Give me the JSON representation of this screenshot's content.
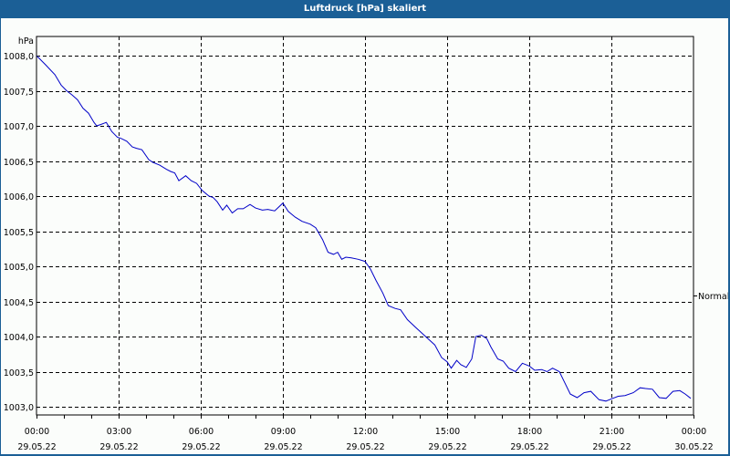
{
  "window": {
    "title": "Luftdruck [hPa] skaliert"
  },
  "chart_data": {
    "type": "line",
    "title": "Luftdruck [hPa] skaliert",
    "xlabel": "",
    "ylabel": "hPa",
    "ylim": [
      1002.85,
      1008.25
    ],
    "xlim_hours": [
      0,
      24
    ],
    "grid": true,
    "grid_style": "dashed",
    "line_color": "#0000c8",
    "reference_line": {
      "label": "Normal",
      "position": "right-axis"
    },
    "y_ticks": [
      "1008,0",
      "1007,5",
      "1007,0",
      "1006,5",
      "1006,0",
      "1005,5",
      "1005,0",
      "1004,5",
      "1004,0",
      "1003,5",
      "1003,0"
    ],
    "y_tick_values": [
      1008.0,
      1007.5,
      1007.0,
      1006.5,
      1006.0,
      1005.5,
      1005.0,
      1004.5,
      1004.0,
      1003.5,
      1003.0
    ],
    "x_ticks": [
      {
        "time": "00:00",
        "date": "29.05.22"
      },
      {
        "time": "03:00",
        "date": "29.05.22"
      },
      {
        "time": "06:00",
        "date": "29.05.22"
      },
      {
        "time": "09:00",
        "date": "29.05.22"
      },
      {
        "time": "12:00",
        "date": "29.05.22"
      },
      {
        "time": "15:00",
        "date": "29.05.22"
      },
      {
        "time": "18:00",
        "date": "29.05.22"
      },
      {
        "time": "21:00",
        "date": "29.05.22"
      },
      {
        "time": "00:00",
        "date": "30.05.22"
      }
    ],
    "series": [
      {
        "name": "Luftdruck",
        "x_hours": [
          0.0,
          0.33,
          0.67,
          0.9,
          1.1,
          1.3,
          1.5,
          1.7,
          1.9,
          2.1,
          2.2,
          2.35,
          2.55,
          2.75,
          2.95,
          3.1,
          3.3,
          3.5,
          3.65,
          3.85,
          4.1,
          4.25,
          4.5,
          4.75,
          4.9,
          5.05,
          5.2,
          5.45,
          5.65,
          5.85,
          6.05,
          6.3,
          6.45,
          6.6,
          6.8,
          6.95,
          7.15,
          7.35,
          7.55,
          7.8,
          8.0,
          8.25,
          8.45,
          8.7,
          9.0,
          9.2,
          9.45,
          9.7,
          10.0,
          10.2,
          10.45,
          10.65,
          10.85,
          11.0,
          11.15,
          11.3,
          11.5,
          11.75,
          12.0,
          12.2,
          12.4,
          12.65,
          12.85,
          13.1,
          13.3,
          13.55,
          13.85,
          14.1,
          14.35,
          14.55,
          14.8,
          15.0,
          15.15,
          15.35,
          15.5,
          15.7,
          15.9,
          16.05,
          16.25,
          16.45,
          16.6,
          16.85,
          17.05,
          17.25,
          17.5,
          17.75,
          18.0,
          18.2,
          18.45,
          18.65,
          18.85,
          19.1,
          19.3,
          19.5,
          19.75,
          20.0,
          20.25,
          20.55,
          20.8,
          21.05,
          21.25,
          21.5,
          21.8,
          22.05,
          22.25,
          22.5,
          22.75,
          23.0,
          23.25,
          23.5,
          23.7,
          23.9
        ],
        "values": [
          1008.0,
          1007.87,
          1007.73,
          1007.58,
          1007.5,
          1007.44,
          1007.37,
          1007.25,
          1007.18,
          1007.05,
          1007.0,
          1007.02,
          1007.05,
          1006.92,
          1006.84,
          1006.82,
          1006.78,
          1006.7,
          1006.68,
          1006.66,
          1006.52,
          1006.48,
          1006.44,
          1006.38,
          1006.35,
          1006.33,
          1006.22,
          1006.29,
          1006.22,
          1006.18,
          1006.08,
          1006.0,
          1005.98,
          1005.92,
          1005.8,
          1005.87,
          1005.76,
          1005.82,
          1005.82,
          1005.88,
          1005.83,
          1005.8,
          1005.81,
          1005.79,
          1005.9,
          1005.78,
          1005.7,
          1005.64,
          1005.6,
          1005.55,
          1005.38,
          1005.2,
          1005.17,
          1005.2,
          1005.1,
          1005.13,
          1005.12,
          1005.1,
          1005.07,
          1004.96,
          1004.8,
          1004.62,
          1004.44,
          1004.4,
          1004.38,
          1004.24,
          1004.13,
          1004.04,
          1003.95,
          1003.88,
          1003.7,
          1003.64,
          1003.55,
          1003.66,
          1003.6,
          1003.56,
          1003.68,
          1004.0,
          1004.02,
          1003.97,
          1003.85,
          1003.68,
          1003.65,
          1003.55,
          1003.5,
          1003.62,
          1003.58,
          1003.52,
          1003.53,
          1003.5,
          1003.55,
          1003.5,
          1003.34,
          1003.18,
          1003.13,
          1003.2,
          1003.22,
          1003.1,
          1003.08,
          1003.12,
          1003.15,
          1003.16,
          1003.2,
          1003.27,
          1003.26,
          1003.25,
          1003.13,
          1003.12,
          1003.22,
          1003.23,
          1003.18,
          1003.12,
          1003.05,
          1003.12
        ]
      }
    ]
  }
}
